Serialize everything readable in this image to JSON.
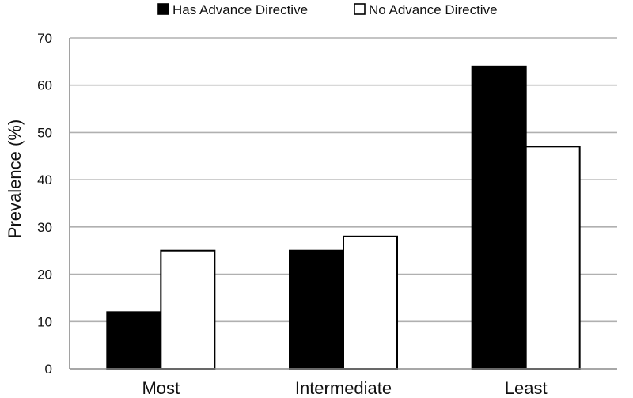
{
  "chart_data": {
    "type": "bar",
    "title": "",
    "xlabel": "",
    "ylabel": "Prevalence (%)",
    "ylim": [
      0,
      70
    ],
    "yticks": [
      0,
      10,
      20,
      30,
      40,
      50,
      60,
      70
    ],
    "grid": true,
    "legend_position": "top",
    "categories": [
      "Most",
      "Intermediate",
      "Least"
    ],
    "series": [
      {
        "name": "Has Advance Directive",
        "color": "#000000",
        "values": [
          12,
          25,
          64
        ]
      },
      {
        "name": "No Advance Directive",
        "color": "#ffffff",
        "values": [
          25,
          28,
          47
        ]
      }
    ]
  }
}
